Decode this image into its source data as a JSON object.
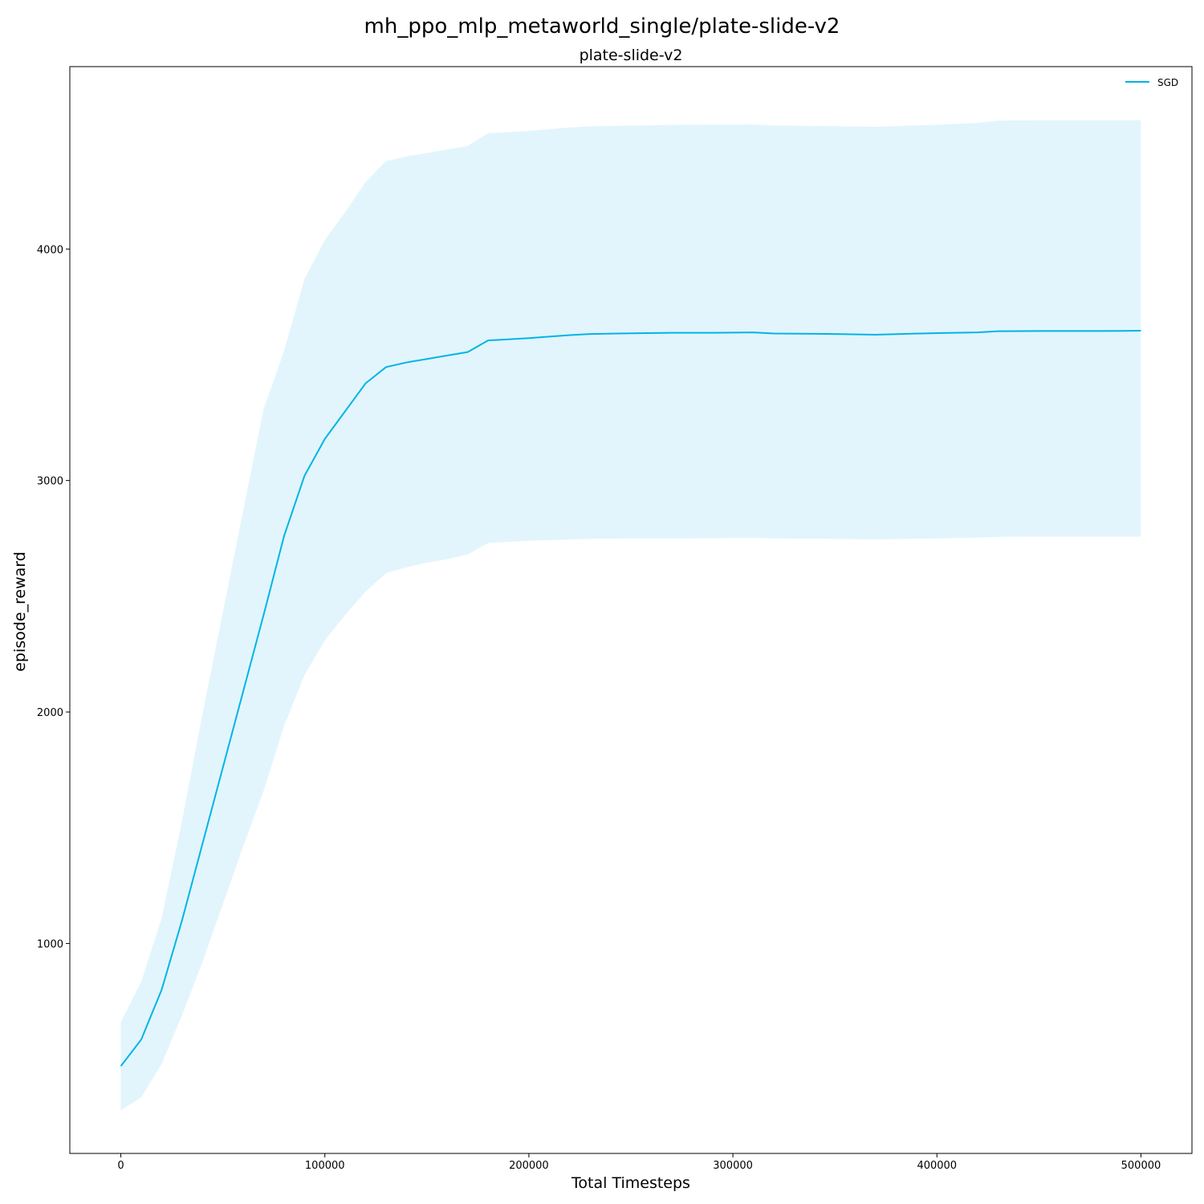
{
  "figure": {
    "suptitle": "mh_ppo_mlp_metaworld_single/plate-slide-v2"
  },
  "chart_data": {
    "type": "line",
    "title": "plate-slide-v2",
    "xlabel": "Total Timesteps",
    "ylabel": "episode_reward",
    "xlim": [
      -25000,
      525000
    ],
    "ylim": [
      93,
      4788
    ],
    "xticks": [
      0,
      100000,
      200000,
      300000,
      400000,
      500000
    ],
    "yticks": [
      1000,
      2000,
      3000,
      4000
    ],
    "grid": false,
    "legend_position": "top-right",
    "series": [
      {
        "name": "SGD",
        "color": "#00b4e6",
        "band_color": "#e2f5fc",
        "x": [
          0,
          10000,
          20000,
          30000,
          40000,
          50000,
          60000,
          70000,
          80000,
          90000,
          100000,
          110000,
          120000,
          130000,
          140000,
          150000,
          160000,
          170000,
          180000,
          200000,
          220000,
          230000,
          250000,
          270000,
          290000,
          310000,
          320000,
          350000,
          370000,
          400000,
          420000,
          430000,
          450000,
          480000,
          500000
        ],
        "y": [
          470,
          585,
          800,
          1100,
          1430,
          1760,
          2090,
          2420,
          2760,
          3020,
          3180,
          3300,
          3420,
          3490,
          3510,
          3525,
          3540,
          3555,
          3605,
          3615,
          3628,
          3633,
          3636,
          3638,
          3638,
          3640,
          3635,
          3633,
          3630,
          3637,
          3640,
          3645,
          3646,
          3646,
          3647
        ],
        "lower": [
          280,
          335,
          480,
          690,
          920,
          1170,
          1420,
          1660,
          1940,
          2160,
          2310,
          2420,
          2520,
          2600,
          2625,
          2645,
          2660,
          2680,
          2730,
          2740,
          2745,
          2748,
          2750,
          2750,
          2751,
          2752,
          2750,
          2748,
          2745,
          2750,
          2753,
          2757,
          2758,
          2758,
          2758
        ],
        "upper": [
          660,
          835,
          1110,
          1530,
          1990,
          2430,
          2870,
          3310,
          3560,
          3870,
          4040,
          4160,
          4290,
          4380,
          4400,
          4415,
          4430,
          4445,
          4500,
          4510,
          4525,
          4530,
          4533,
          4536,
          4537,
          4538,
          4533,
          4531,
          4528,
          4537,
          4545,
          4555,
          4556,
          4556,
          4556
        ]
      }
    ]
  }
}
